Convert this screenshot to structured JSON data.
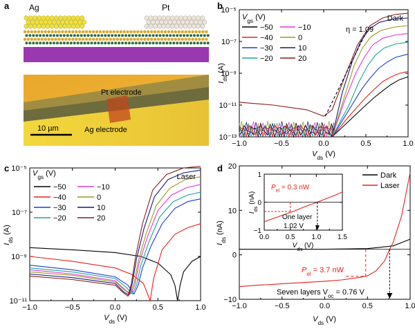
{
  "panel_a": {
    "letter": "a",
    "left_label": "Ag",
    "right_label": "Pt",
    "micrograph_label_pt": "Pt electrode",
    "micrograph_label_ag": "Ag electrode",
    "scale_bar": "10 µm",
    "colors": {
      "ag": "#f0e23c",
      "pt": "#ede4da",
      "substrate": "#9a38b0",
      "sulfur": "#e0a52a",
      "metal": "#2c6e44"
    }
  },
  "chart_data": [
    {
      "panel": "b",
      "type": "line",
      "title": "Dark",
      "xlabel": "V_ds (V)",
      "ylabel": "I_ds (A)",
      "yscale": "log",
      "xlim": [
        -1.0,
        1.0
      ],
      "ylim": [
        1e-13,
        1e-05
      ],
      "x_ticks": [
        "−1.0",
        "−0.5",
        "0.0",
        "0.5",
        "1.0"
      ],
      "y_ticks": [
        "10⁻¹³",
        "10⁻¹¹",
        "10⁻⁹",
        "10⁻⁷",
        "10⁻⁵"
      ],
      "legend_title": "V_gs",
      "legend_unit": "(V)",
      "legend_placement": "top-left",
      "annotation": "η = 1.09",
      "series": [
        {
          "name": "−50",
          "color": "#000000",
          "x": [
            0.1,
            0.3,
            0.5,
            0.6,
            0.7,
            0.8,
            0.9,
            1.0
          ],
          "y": [
            1e-13,
            1e-12,
            1e-11,
            3e-11,
            8e-11,
            2e-10,
            4e-10,
            6e-10
          ]
        },
        {
          "name": "−40",
          "color": "#e8201c",
          "x": [
            0.1,
            0.3,
            0.5,
            0.6,
            0.7,
            0.8,
            0.9,
            1.0
          ],
          "y": [
            1e-13,
            2e-12,
            3e-11,
            1e-10,
            3e-10,
            6e-10,
            1e-09,
            1.3e-09
          ]
        },
        {
          "name": "−30",
          "color": "#1c3bd6",
          "x": [
            0.1,
            0.3,
            0.45,
            0.55,
            0.65,
            0.75,
            0.85,
            1.0
          ],
          "y": [
            1e-13,
            5e-12,
            1e-10,
            5e-10,
            2e-09,
            5e-09,
            1e-08,
            1.6e-08
          ]
        },
        {
          "name": "−20",
          "color": "#1aa59a",
          "x": [
            0.1,
            0.3,
            0.42,
            0.52,
            0.62,
            0.72,
            0.85,
            1.0
          ],
          "y": [
            1e-13,
            1e-11,
            3e-10,
            3e-09,
            1.5e-08,
            4e-08,
            7e-08,
            9e-08
          ]
        },
        {
          "name": "−10",
          "color": "#e236d8",
          "x": [
            0.1,
            0.25,
            0.38,
            0.48,
            0.58,
            0.7,
            0.85,
            1.0
          ],
          "y": [
            1e-13,
            2e-11,
            1e-09,
            1e-08,
            6e-08,
            1.6e-07,
            2.6e-07,
            3.2e-07
          ]
        },
        {
          "name": "0",
          "color": "#9c9a1c",
          "x": [
            0.1,
            0.25,
            0.36,
            0.46,
            0.56,
            0.68,
            0.84,
            1.0
          ],
          "y": [
            1e-13,
            4e-11,
            3e-09,
            4e-08,
            2e-07,
            5e-07,
            8e-07,
            1e-06
          ]
        },
        {
          "name": "10",
          "color": "#101a7a",
          "x": [
            0.1,
            0.22,
            0.34,
            0.44,
            0.54,
            0.66,
            0.82,
            1.0
          ],
          "y": [
            1e-13,
            6e-11,
            6e-09,
            1e-07,
            6e-07,
            1.6e-06,
            2.6e-06,
            3e-06
          ]
        },
        {
          "name": "20",
          "color": "#8a1a1a",
          "x": [
            -1.0,
            -0.6,
            -0.2,
            0.0,
            0.1,
            0.25,
            0.4,
            0.55,
            0.7,
            0.85,
            1.0
          ],
          "y": [
            1.5e-11,
            1e-11,
            5e-12,
            2e-12,
            5e-12,
            6e-10,
            6e-08,
            1e-06,
            3e-06,
            5e-06,
            6e-06
          ]
        }
      ]
    },
    {
      "panel": "c",
      "type": "line",
      "title": "Laser",
      "xlabel": "V_ds (V)",
      "ylabel": "I_ds (A)",
      "yscale": "log",
      "xlim": [
        -1.0,
        1.0
      ],
      "ylim": [
        1e-11,
        1e-05
      ],
      "x_ticks": [
        "−1.0",
        "−0.5",
        "0.0",
        "0.5",
        "1.0"
      ],
      "y_ticks": [
        "10⁻¹¹",
        "10⁻⁹",
        "10⁻⁷",
        "10⁻⁵"
      ],
      "legend_title": "V_gs",
      "legend_unit": "(V)",
      "legend_placement": "top-left",
      "series": [
        {
          "name": "−50",
          "color": "#000000",
          "x": [
            -1.0,
            -0.5,
            0.0,
            0.3,
            0.5,
            0.65,
            0.7,
            0.73,
            0.76,
            0.8,
            0.9,
            1.0
          ],
          "y": [
            2.5e-09,
            2e-09,
            1.5e-09,
            1e-09,
            5e-10,
            1.5e-10,
            5e-11,
            1e-11,
            5e-11,
            2e-10,
            6e-10,
            1e-09
          ]
        },
        {
          "name": "−40",
          "color": "#e8201c",
          "x": [
            -1.0,
            -0.5,
            0.0,
            0.2,
            0.33,
            0.38,
            0.41,
            0.45,
            0.55,
            0.7,
            0.85,
            1.0
          ],
          "y": [
            1e-09,
            6e-10,
            3e-10,
            1.5e-10,
            6e-11,
            2e-11,
            1e-11,
            1e-10,
            2e-09,
            1e-08,
            2e-08,
            3e-08
          ]
        },
        {
          "name": "−30",
          "color": "#1c3bd6",
          "x": [
            -1.0,
            -0.5,
            0.0,
            0.15,
            0.22,
            0.27,
            0.32,
            0.42,
            0.55,
            0.7,
            0.85,
            1.0
          ],
          "y": [
            4e-10,
            2.5e-10,
            1.2e-10,
            5e-11,
            2e-11,
            5e-11,
            3e-10,
            3e-09,
            3e-08,
            1.5e-07,
            3e-07,
            4e-07
          ]
        },
        {
          "name": "−20",
          "color": "#1aa59a",
          "x": [
            -1.0,
            -0.5,
            0.0,
            0.13,
            0.2,
            0.25,
            0.3,
            0.4,
            0.52,
            0.68,
            0.85,
            1.0
          ],
          "y": [
            3e-10,
            2e-10,
            1e-10,
            4e-11,
            2e-11,
            5e-11,
            4e-10,
            5e-09,
            6e-08,
            3e-07,
            6e-07,
            8e-07
          ]
        },
        {
          "name": "−10",
          "color": "#e236d8",
          "x": [
            -1.0,
            -0.5,
            0.0,
            0.12,
            0.18,
            0.23,
            0.28,
            0.38,
            0.5,
            0.66,
            0.84,
            1.0
          ],
          "y": [
            2.5e-10,
            1.6e-10,
            8e-11,
            3e-11,
            2e-11,
            5e-11,
            5e-10,
            8e-09,
            1.2e-07,
            6e-07,
            1.3e-06,
            1.8e-06
          ]
        },
        {
          "name": "0",
          "color": "#9c9a1c",
          "x": [
            -1.0,
            -0.5,
            0.0,
            0.11,
            0.17,
            0.22,
            0.27,
            0.36,
            0.48,
            0.64,
            0.82,
            1.0
          ],
          "y": [
            2e-10,
            1.4e-10,
            7e-11,
            3e-11,
            2e-11,
            6e-11,
            6e-10,
            1e-08,
            2e-07,
            1.2e-06,
            3e-06,
            4e-06
          ]
        },
        {
          "name": "10",
          "color": "#101a7a",
          "x": [
            -1.0,
            -0.5,
            0.0,
            0.1,
            0.16,
            0.2,
            0.25,
            0.34,
            0.46,
            0.62,
            0.8,
            1.0
          ],
          "y": [
            1.6e-10,
            1.1e-10,
            6e-11,
            2.5e-11,
            1.8e-11,
            6e-11,
            8e-10,
            2e-08,
            5e-07,
            3e-06,
            6e-06,
            8e-06
          ]
        },
        {
          "name": "20",
          "color": "#8a1a1a",
          "x": [
            -1.0,
            -0.5,
            0.0,
            0.1,
            0.15,
            0.19,
            0.24,
            0.32,
            0.44,
            0.6,
            0.8,
            1.0
          ],
          "y": [
            1.3e-10,
            9e-11,
            5e-11,
            2.2e-11,
            1.6e-11,
            6e-11,
            1e-09,
            3e-08,
            1e-06,
            5e-06,
            1e-05,
            1.2e-05
          ]
        }
      ]
    },
    {
      "panel": "d",
      "type": "line",
      "xlabel": "V_ds (V)",
      "ylabel": "I_ds (nA)",
      "xlim": [
        -1.0,
        1.0
      ],
      "ylim": [
        -15,
        25
      ],
      "x_ticks": [
        "−1.0",
        "−0.5",
        "0.0",
        "0.5",
        "1.0"
      ],
      "y_ticks": [
        "−10",
        "0",
        "10",
        "20"
      ],
      "legend_placement": "top-right",
      "series": [
        {
          "name": "Dark",
          "color": "#000000",
          "x": [
            -1.0,
            -0.5,
            0.0,
            0.5,
            0.8,
            1.0
          ],
          "y": [
            0,
            0,
            0,
            0.2,
            1,
            3
          ]
        },
        {
          "name": "Laser",
          "color": "#e8201c",
          "x": [
            -1.0,
            -0.8,
            -0.6,
            -0.4,
            -0.2,
            0.0,
            0.2,
            0.4,
            0.5,
            0.6,
            0.7,
            0.76,
            0.8,
            0.9,
            1.0
          ],
          "y": [
            -11.2,
            -10.8,
            -10.5,
            -10.2,
            -9.9,
            -9.6,
            -9.2,
            -8.5,
            -8.0,
            -6.5,
            -3.5,
            0,
            2,
            10,
            23
          ]
        }
      ],
      "annotations": {
        "pel": "3.7 nW",
        "pel_prefix": "P",
        "pel_sub": "el",
        "voc_prefix": "Seven layers V",
        "voc_sub": "oc",
        "voc_value": " = 0.76 V"
      },
      "inset": {
        "type": "line",
        "xlabel": "V_ds (V)",
        "ylabel": "I_ds (nA)",
        "xlim": [
          0,
          1.5
        ],
        "ylim": [
          -1.5,
          1.5
        ],
        "x_ticks": [
          "0.0",
          "0.5",
          "1.0",
          "1.5"
        ],
        "y_ticks": [
          "−1",
          "0",
          "1"
        ],
        "series": [
          {
            "name": "One layer",
            "color": "#e8201c",
            "x": [
              0,
              0.2,
              0.4,
              0.6,
              0.8,
              1.02,
              1.2,
              1.4,
              1.5
            ],
            "y": [
              -1.05,
              -0.85,
              -0.65,
              -0.45,
              -0.22,
              0,
              0.2,
              0.42,
              0.55
            ]
          }
        ],
        "annotations": {
          "pel": "0.3 nW",
          "pel_prefix": "P",
          "pel_sub": "el",
          "layer": "One layer",
          "voc": "1.02 V"
        }
      }
    }
  ],
  "panel_letters": {
    "b": "b",
    "c": "c",
    "d": "d"
  }
}
